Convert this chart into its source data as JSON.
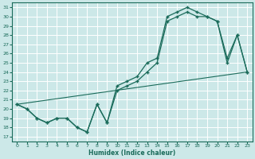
{
  "xlabel": "Humidex (Indice chaleur)",
  "bg_color": "#cce8e8",
  "grid_color": "#ffffff",
  "line_color": "#1a6b5a",
  "xlim": [
    -0.5,
    23.5
  ],
  "ylim": [
    16.5,
    31.5
  ],
  "yticks": [
    17,
    18,
    19,
    20,
    21,
    22,
    23,
    24,
    25,
    26,
    27,
    28,
    29,
    30,
    31
  ],
  "xticks": [
    0,
    1,
    2,
    3,
    4,
    5,
    6,
    7,
    8,
    9,
    10,
    11,
    12,
    13,
    14,
    15,
    16,
    17,
    18,
    19,
    20,
    21,
    22,
    23
  ],
  "line1_x": [
    0,
    1,
    2,
    3,
    4,
    5,
    6,
    7,
    8,
    9,
    10,
    11,
    12,
    13,
    14,
    15,
    16,
    17,
    18,
    19,
    20,
    21,
    22,
    23
  ],
  "line1_y": [
    20.5,
    20.0,
    19.0,
    18.5,
    19.0,
    19.0,
    18.0,
    17.5,
    20.5,
    18.5,
    22.5,
    23.0,
    23.5,
    25.0,
    25.5,
    30.0,
    30.5,
    31.0,
    30.5,
    30.0,
    29.5,
    25.5,
    28.0,
    24.0
  ],
  "line2_x": [
    0,
    1,
    2,
    3,
    4,
    5,
    6,
    7,
    8,
    9,
    10,
    11,
    12,
    13,
    14,
    15,
    16,
    17,
    18,
    19,
    20,
    21,
    22,
    23
  ],
  "line2_y": [
    20.5,
    20.0,
    19.0,
    18.5,
    19.0,
    19.0,
    18.0,
    17.5,
    20.5,
    18.5,
    22.0,
    22.5,
    23.0,
    24.0,
    25.0,
    29.5,
    30.0,
    30.5,
    30.0,
    30.0,
    29.5,
    25.0,
    28.0,
    24.0
  ],
  "line3_x": [
    0,
    23
  ],
  "line3_y": [
    20.5,
    24.0
  ]
}
